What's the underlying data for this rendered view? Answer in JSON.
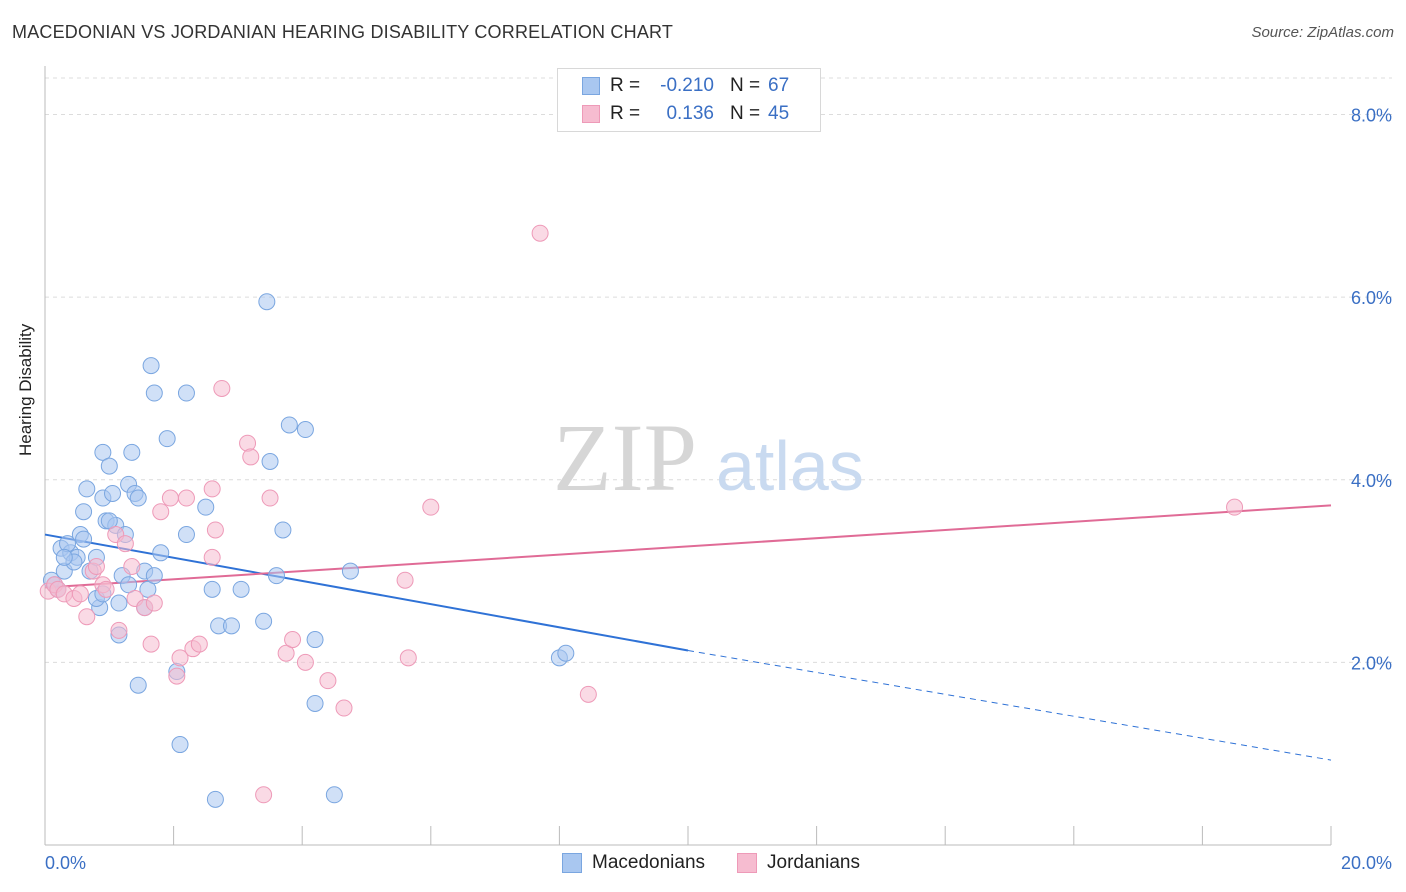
{
  "title": "MACEDONIAN VS JORDANIAN HEARING DISABILITY CORRELATION CHART",
  "source": "Source: ZipAtlas.com",
  "watermark": {
    "zip": "ZIP",
    "atlas": "atlas"
  },
  "legend": {
    "rows": [
      {
        "r_label": "R =",
        "r_value": "-0.210",
        "n_label": "N =",
        "n_value": "67"
      },
      {
        "r_label": "R =",
        "r_value": "0.136",
        "n_label": "N =",
        "n_value": "45"
      }
    ]
  },
  "bottom_legend": [
    "Macedonians",
    "Jordanians"
  ],
  "chart_data": {
    "type": "scatter",
    "title": "MACEDONIAN VS JORDANIAN HEARING DISABILITY CORRELATION CHART",
    "xlabel": "",
    "ylabel": "Hearing Disability",
    "xlim": [
      0,
      20
    ],
    "ylim": [
      0,
      8.4
    ],
    "x_tick_labels": [
      "0.0%",
      "20.0%"
    ],
    "y_ticks": [
      2,
      4,
      6,
      8
    ],
    "y_tick_labels": [
      "2.0%",
      "4.0%",
      "6.0%",
      "8.0%"
    ],
    "grid": true,
    "legend_position": "top-center",
    "colors": {
      "macedonians_fill": "#a9c7f0",
      "macedonians_stroke": "#7aa6e0",
      "macedonians_line": "#2f72d6",
      "jordanians_fill": "#f6bcd0",
      "jordanians_stroke": "#ee9ab8",
      "jordanians_line": "#e06b96"
    },
    "series": [
      {
        "name": "Macedonians",
        "r": -0.21,
        "n": 67,
        "trend": {
          "x0": 0,
          "y0": 3.4,
          "x_solid_end": 10,
          "y_solid_end": 2.13,
          "x1": 20,
          "y1": 0.93
        },
        "points": [
          [
            0.1,
            2.9
          ],
          [
            0.2,
            2.8
          ],
          [
            0.3,
            3.0
          ],
          [
            0.25,
            3.25
          ],
          [
            0.4,
            3.2
          ],
          [
            0.5,
            3.15
          ],
          [
            0.35,
            3.3
          ],
          [
            0.55,
            3.4
          ],
          [
            0.6,
            3.35
          ],
          [
            0.6,
            3.65
          ],
          [
            0.65,
            3.9
          ],
          [
            0.7,
            3.0
          ],
          [
            0.8,
            3.15
          ],
          [
            0.85,
            2.6
          ],
          [
            0.8,
            2.7
          ],
          [
            0.9,
            2.75
          ],
          [
            0.9,
            3.8
          ],
          [
            0.9,
            4.3
          ],
          [
            0.95,
            3.55
          ],
          [
            1.0,
            4.15
          ],
          [
            1.05,
            3.85
          ],
          [
            1.1,
            3.5
          ],
          [
            1.15,
            2.65
          ],
          [
            1.15,
            2.3
          ],
          [
            1.2,
            2.95
          ],
          [
            1.25,
            3.4
          ],
          [
            1.3,
            2.85
          ],
          [
            1.3,
            3.95
          ],
          [
            1.35,
            4.3
          ],
          [
            1.4,
            3.85
          ],
          [
            1.45,
            3.8
          ],
          [
            1.45,
            1.75
          ],
          [
            1.55,
            3.0
          ],
          [
            1.55,
            2.6
          ],
          [
            1.6,
            2.8
          ],
          [
            1.65,
            5.25
          ],
          [
            1.7,
            4.95
          ],
          [
            1.7,
            2.95
          ],
          [
            1.8,
            3.2
          ],
          [
            1.9,
            4.45
          ],
          [
            2.05,
            1.9
          ],
          [
            2.1,
            1.1
          ],
          [
            2.2,
            3.4
          ],
          [
            2.2,
            4.95
          ],
          [
            2.5,
            3.7
          ],
          [
            2.6,
            2.8
          ],
          [
            2.65,
            0.5
          ],
          [
            2.7,
            2.4
          ],
          [
            2.9,
            2.4
          ],
          [
            3.05,
            2.8
          ],
          [
            3.4,
            2.45
          ],
          [
            3.45,
            5.95
          ],
          [
            3.5,
            4.2
          ],
          [
            3.6,
            2.95
          ],
          [
            3.7,
            3.45
          ],
          [
            3.8,
            4.6
          ],
          [
            4.05,
            4.55
          ],
          [
            4.2,
            2.25
          ],
          [
            4.2,
            1.55
          ],
          [
            4.5,
            0.55
          ],
          [
            4.75,
            3.0
          ],
          [
            8.0,
            2.05
          ],
          [
            8.1,
            2.1
          ],
          [
            0.15,
            2.85
          ],
          [
            0.45,
            3.1
          ],
          [
            1.0,
            3.55
          ],
          [
            0.3,
            3.15
          ]
        ]
      },
      {
        "name": "Jordanians",
        "r": 0.136,
        "n": 45,
        "trend": {
          "x0": 0,
          "y0": 2.82,
          "x1": 20,
          "y1": 3.72
        },
        "points": [
          [
            0.05,
            2.78
          ],
          [
            0.15,
            2.85
          ],
          [
            0.2,
            2.8
          ],
          [
            0.3,
            2.75
          ],
          [
            0.45,
            2.7
          ],
          [
            0.55,
            2.75
          ],
          [
            0.65,
            2.5
          ],
          [
            0.75,
            3.0
          ],
          [
            0.8,
            3.05
          ],
          [
            0.9,
            2.85
          ],
          [
            0.95,
            2.8
          ],
          [
            1.1,
            3.4
          ],
          [
            1.15,
            2.35
          ],
          [
            1.25,
            3.3
          ],
          [
            1.35,
            3.05
          ],
          [
            1.4,
            2.7
          ],
          [
            1.55,
            2.6
          ],
          [
            1.65,
            2.2
          ],
          [
            1.7,
            2.65
          ],
          [
            1.8,
            3.65
          ],
          [
            1.95,
            3.8
          ],
          [
            2.05,
            1.85
          ],
          [
            2.1,
            2.05
          ],
          [
            2.2,
            3.8
          ],
          [
            2.3,
            2.15
          ],
          [
            2.4,
            2.2
          ],
          [
            2.6,
            3.9
          ],
          [
            2.6,
            3.15
          ],
          [
            2.65,
            3.45
          ],
          [
            2.75,
            5.0
          ],
          [
            3.15,
            4.4
          ],
          [
            3.2,
            4.25
          ],
          [
            3.4,
            0.55
          ],
          [
            3.5,
            3.8
          ],
          [
            3.75,
            2.1
          ],
          [
            3.85,
            2.25
          ],
          [
            4.05,
            2.0
          ],
          [
            4.4,
            1.8
          ],
          [
            4.65,
            1.5
          ],
          [
            5.6,
            2.9
          ],
          [
            5.65,
            2.05
          ],
          [
            6.0,
            3.7
          ],
          [
            7.7,
            6.7
          ],
          [
            8.45,
            1.65
          ],
          [
            18.5,
            3.7
          ]
        ]
      }
    ]
  }
}
